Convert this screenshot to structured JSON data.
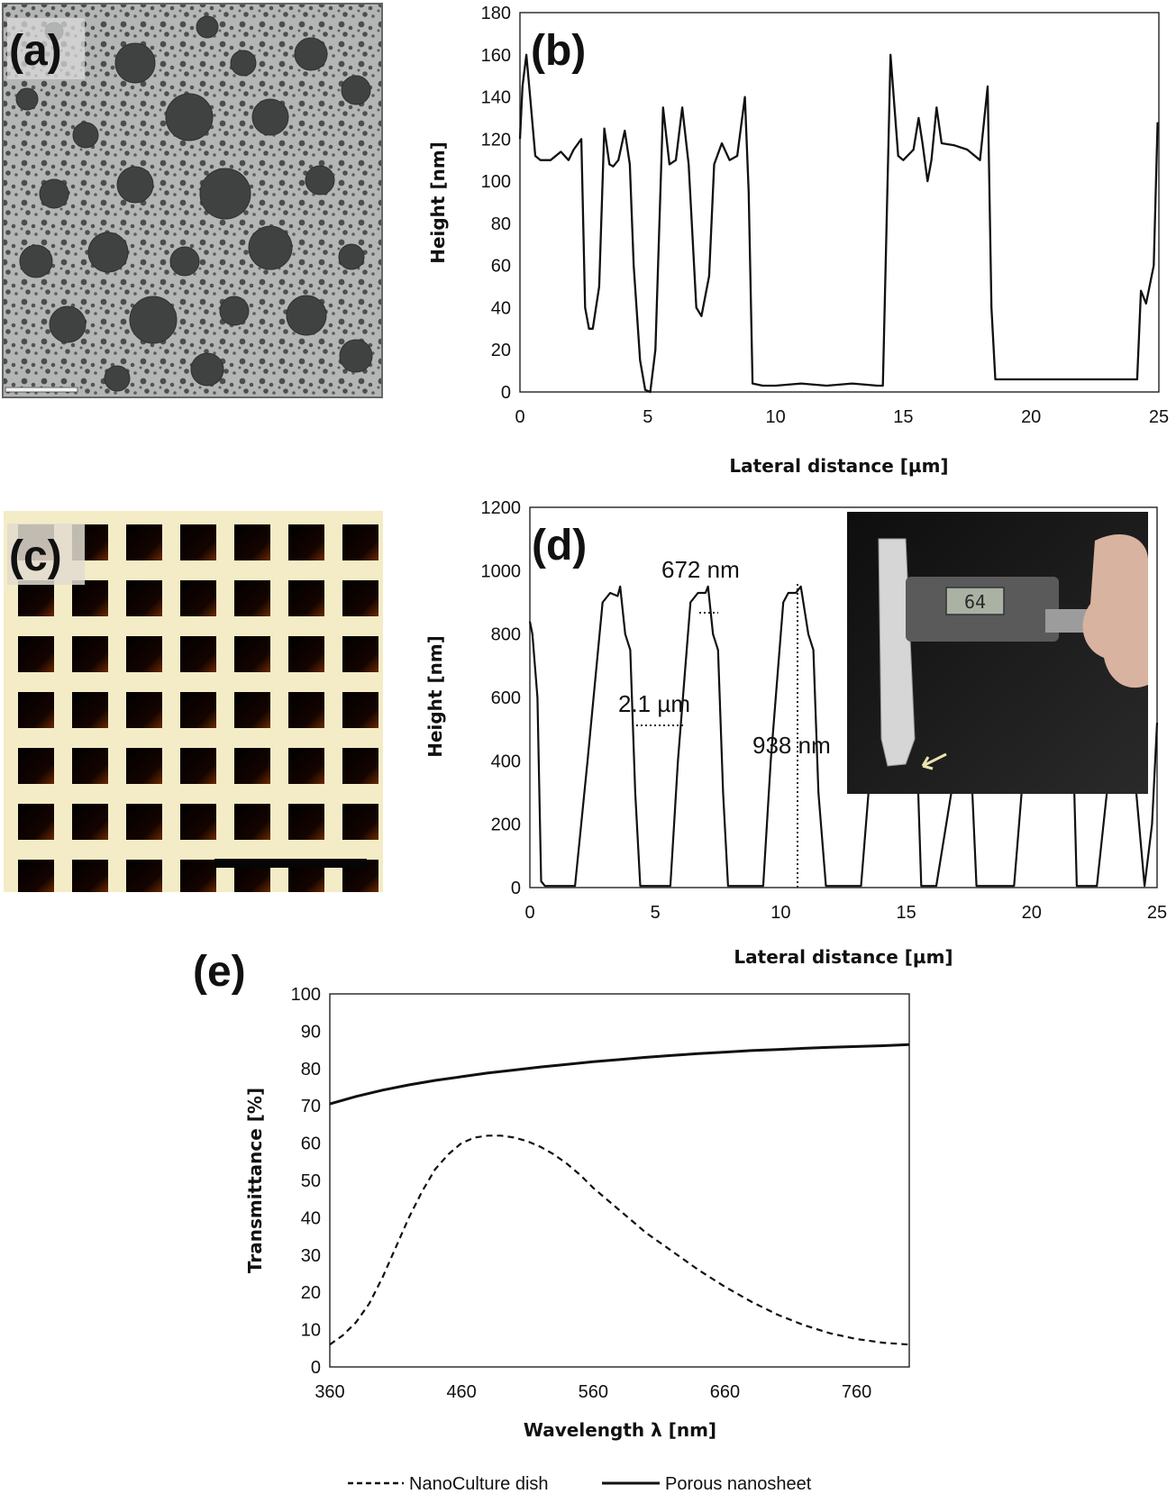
{
  "panels": {
    "a": {
      "label": "(a)"
    },
    "b": {
      "label": "(b)"
    },
    "c": {
      "label": "(c)"
    },
    "d": {
      "label": "(d)",
      "annotations": [
        "672 nm",
        "2.1 µm",
        "938 nm"
      ],
      "inset_display": "64"
    },
    "e": {
      "label": "(e)"
    }
  },
  "chart_data": [
    {
      "id": "b",
      "type": "line",
      "xlabel": "Lateral distance [µm]",
      "ylabel": "Height [nm]",
      "xlim": [
        0,
        25
      ],
      "ylim": [
        0,
        180
      ],
      "xticks": [
        0,
        5,
        10,
        15,
        20,
        25
      ],
      "yticks": [
        0,
        20,
        40,
        60,
        80,
        100,
        120,
        140,
        160,
        180
      ],
      "grid": false,
      "series": [
        {
          "x": [
            0,
            0.1,
            0.25,
            0.4,
            0.6,
            0.8,
            1.2,
            1.6,
            1.9,
            2.1,
            2.4,
            2.55,
            2.7,
            2.85,
            3.1,
            3.3,
            3.5,
            3.65,
            3.85,
            4.1,
            4.3,
            4.45,
            4.7,
            4.9,
            5.1,
            5.3,
            5.6,
            5.85,
            6.1,
            6.35,
            6.6,
            6.9,
            7.1,
            7.4,
            7.6,
            7.9,
            8.2,
            8.5,
            8.8,
            8.95,
            9.1,
            9.5,
            10,
            11,
            12,
            13,
            14,
            14.2,
            14.5,
            14.8,
            15,
            15.4,
            15.6,
            15.75,
            15.95,
            16.1,
            16.3,
            16.5,
            17,
            17.5,
            18,
            18.3,
            18.45,
            18.6,
            19,
            20,
            21,
            22,
            23,
            24,
            24.15,
            24.3,
            24.5,
            24.8,
            24.95
          ],
          "y": [
            120,
            145,
            160,
            140,
            112,
            110,
            110,
            114,
            110,
            115,
            120,
            40,
            30,
            30,
            50,
            125,
            108,
            107,
            110,
            124,
            108,
            60,
            15,
            1,
            0,
            20,
            135,
            108,
            110,
            135,
            108,
            40,
            36,
            55,
            108,
            118,
            110,
            112,
            140,
            95,
            4,
            3,
            3,
            4,
            3,
            4,
            3,
            3,
            160,
            112,
            110,
            115,
            130,
            118,
            100,
            110,
            135,
            118,
            117,
            115,
            110,
            145,
            40,
            6,
            6,
            6,
            6,
            6,
            6,
            6,
            6,
            48,
            42,
            60,
            128
          ]
        }
      ]
    },
    {
      "id": "d",
      "type": "line",
      "xlabel": "Lateral distance [µm]",
      "ylabel": "Height [nm]",
      "xlim": [
        0,
        25
      ],
      "ylim": [
        0,
        1200
      ],
      "xticks": [
        0,
        5,
        10,
        15,
        20,
        25
      ],
      "yticks": [
        0,
        200,
        400,
        600,
        800,
        1000,
        1200
      ],
      "grid": false,
      "series": [
        {
          "x": [
            0,
            0.1,
            0.3,
            0.45,
            0.6,
            1.2,
            1.8,
            2.3,
            2.9,
            3.2,
            3.5,
            3.6,
            3.8,
            4.0,
            4.2,
            4.4,
            5.0,
            5.6,
            5.9,
            6.4,
            6.7,
            7.0,
            7.1,
            7.3,
            7.5,
            7.7,
            7.9,
            8.5,
            9.3,
            9.6,
            10.1,
            10.3,
            10.6,
            10.8,
            11.1,
            11.3,
            11.5,
            11.8,
            12.6,
            13.2,
            13.6,
            14.0,
            15.2,
            15.4,
            15.6,
            16.2,
            16.8,
            17.3,
            17.8,
            18.6,
            19.3,
            19.6,
            20.2,
            21.5,
            21.8,
            22.6,
            23.0,
            23.5,
            24.5,
            24.8,
            25
          ],
          "y": [
            840,
            800,
            600,
            20,
            5,
            5,
            5,
            400,
            900,
            930,
            920,
            950,
            800,
            750,
            300,
            5,
            5,
            5,
            400,
            900,
            930,
            930,
            950,
            800,
            750,
            300,
            5,
            5,
            5,
            400,
            900,
            930,
            930,
            950,
            800,
            750,
            300,
            5,
            5,
            5,
            400,
            900,
            900,
            500,
            5,
            5,
            300,
            900,
            5,
            5,
            5,
            300,
            900,
            900,
            5,
            5,
            300,
            900,
            5,
            200,
            520
          ]
        }
      ]
    },
    {
      "id": "e",
      "type": "line",
      "xlabel": "Wavelength λ [nm]",
      "ylabel": "Transmittance [%]",
      "xlim": [
        360,
        800
      ],
      "ylim": [
        0,
        100
      ],
      "xticks": [
        360,
        460,
        560,
        660,
        760
      ],
      "yticks": [
        0,
        10,
        20,
        30,
        40,
        50,
        60,
        70,
        80,
        90,
        100
      ],
      "grid": false,
      "legend": "bottom",
      "series": [
        {
          "name": "NanoCulture dish",
          "style": "dashed",
          "x": [
            360,
            370,
            380,
            390,
            400,
            410,
            420,
            430,
            440,
            450,
            460,
            470,
            480,
            490,
            500,
            510,
            520,
            530,
            540,
            550,
            560,
            570,
            580,
            590,
            600,
            620,
            640,
            660,
            680,
            700,
            720,
            740,
            760,
            780,
            800
          ],
          "y": [
            6,
            8.5,
            12,
            17,
            24,
            32,
            40,
            47,
            53,
            57,
            60,
            61.5,
            62,
            62,
            61.5,
            60.5,
            59,
            57,
            54.5,
            51.5,
            48,
            45,
            42,
            39,
            36,
            31,
            26,
            21.5,
            17.5,
            14,
            11.2,
            9,
            7.5,
            6.5,
            6
          ]
        },
        {
          "name": "Porous nanosheet",
          "style": "solid",
          "x": [
            360,
            380,
            400,
            420,
            440,
            460,
            480,
            500,
            520,
            540,
            560,
            580,
            600,
            620,
            640,
            660,
            680,
            700,
            720,
            740,
            760,
            780,
            800
          ],
          "y": [
            70.5,
            72.5,
            74.2,
            75.6,
            76.8,
            77.8,
            78.8,
            79.6,
            80.4,
            81.1,
            81.8,
            82.4,
            83,
            83.5,
            84,
            84.4,
            84.8,
            85.1,
            85.4,
            85.7,
            85.9,
            86.1,
            86.4
          ]
        }
      ]
    }
  ]
}
